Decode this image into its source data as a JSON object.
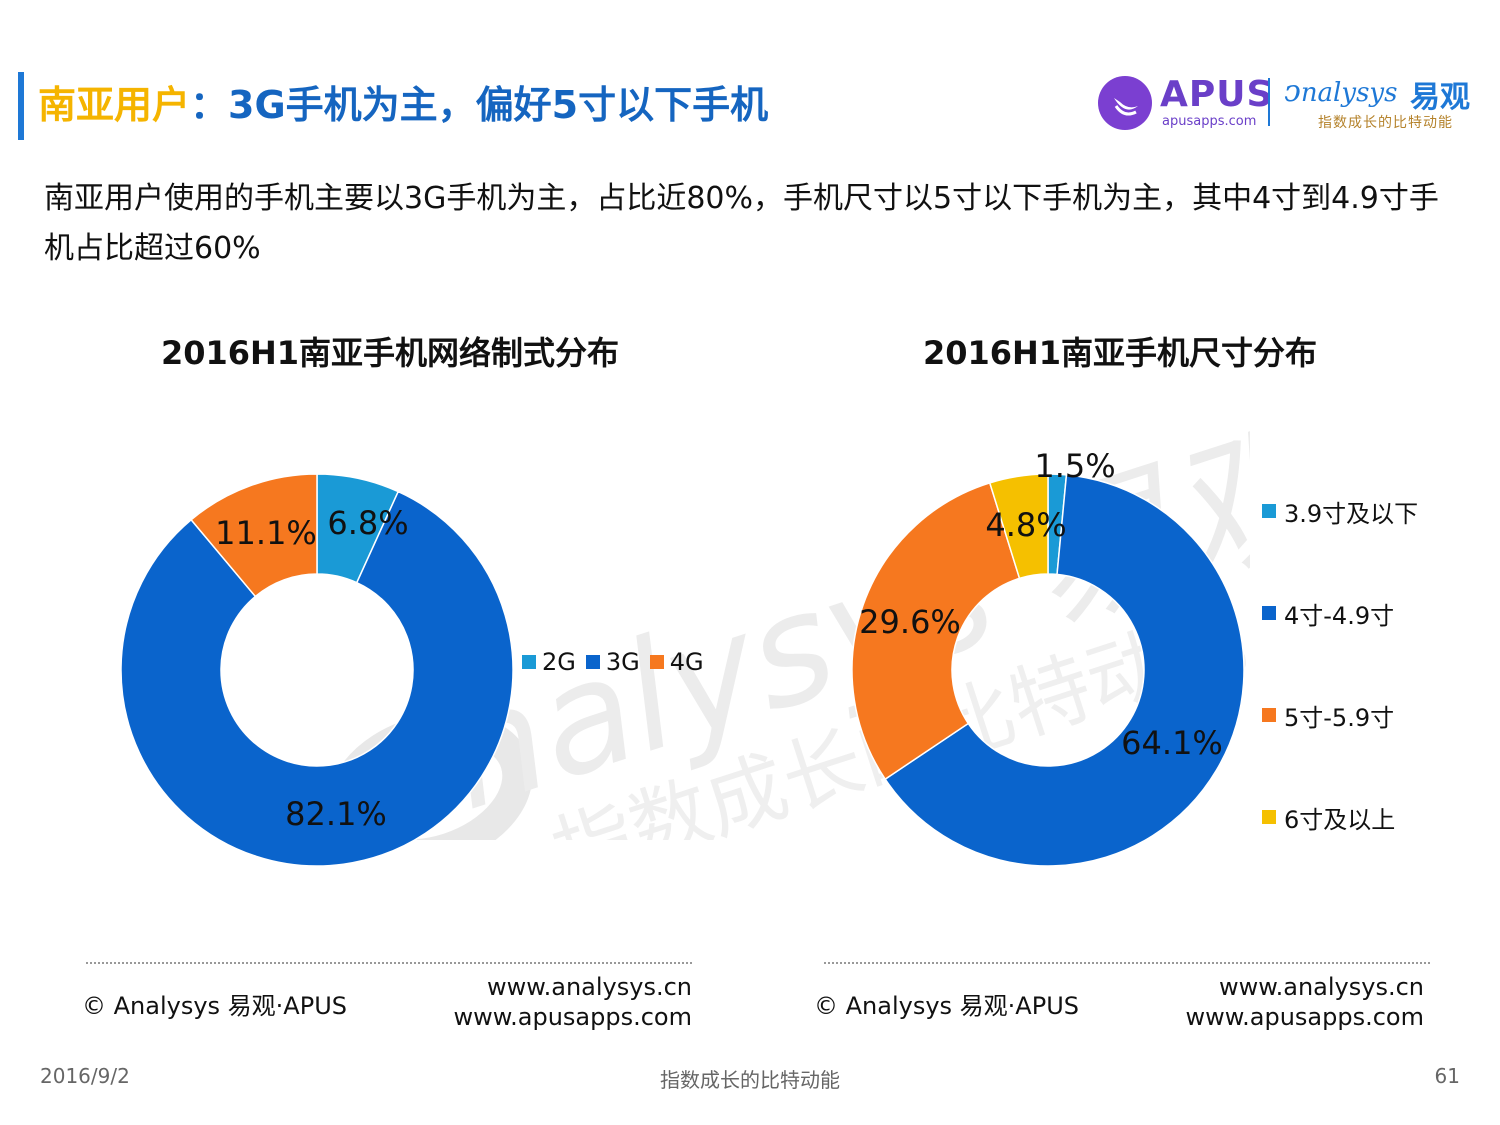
{
  "header": {
    "title_highlight": "南亚用户",
    "title_rest": "：3G手机为主，偏好5寸以下手机",
    "apus_logo_text": "APUS",
    "apus_logo_sub": "apusapps.com",
    "analysys_logo_text": "nalysys",
    "analysys_logo_cn": "易观",
    "analysys_logo_sub": "指数成长的比特动能"
  },
  "summary": "南亚用户使用的手机主要以3G手机为主，占比近80%，手机尺寸以5寸以下手机为主，其中4寸到4.9寸手机占比超过60%",
  "chart_data": [
    {
      "type": "pie",
      "style": "donut",
      "title": "2016H1南亚手机网络制式分布",
      "categories": [
        "2G",
        "3G",
        "4G"
      ],
      "values": [
        6.8,
        82.1,
        11.1
      ],
      "labels": [
        "6.8%",
        "82.1%",
        "11.1%"
      ],
      "colors": [
        "#1a9ad6",
        "#0a64cc",
        "#f6781f"
      ],
      "legend_position": "right"
    },
    {
      "type": "pie",
      "style": "donut",
      "title": "2016H1南亚手机尺寸分布",
      "categories": [
        "3.9寸及以下",
        "4寸-4.9寸",
        "5寸-5.9寸",
        "6寸及以上"
      ],
      "values": [
        1.5,
        64.1,
        29.6,
        4.8
      ],
      "labels": [
        "1.5%",
        "64.1%",
        "29.6%",
        "4.8%"
      ],
      "colors": [
        "#1a9ad6",
        "#0a64cc",
        "#f6781f",
        "#f5c000"
      ],
      "legend_position": "right"
    }
  ],
  "footer_left": {
    "copyright": "© Analysys 易观·APUS",
    "url1": "www.analysys.cn",
    "url2": "www.apusapps.com"
  },
  "footer_right": {
    "copyright": "© Analysys 易观·APUS",
    "url1": "www.analysys.cn",
    "url2": "www.apusapps.com"
  },
  "page_footer": {
    "date": "2016/9/2",
    "slogan": "指数成长的比特动能",
    "page_number": "61"
  }
}
